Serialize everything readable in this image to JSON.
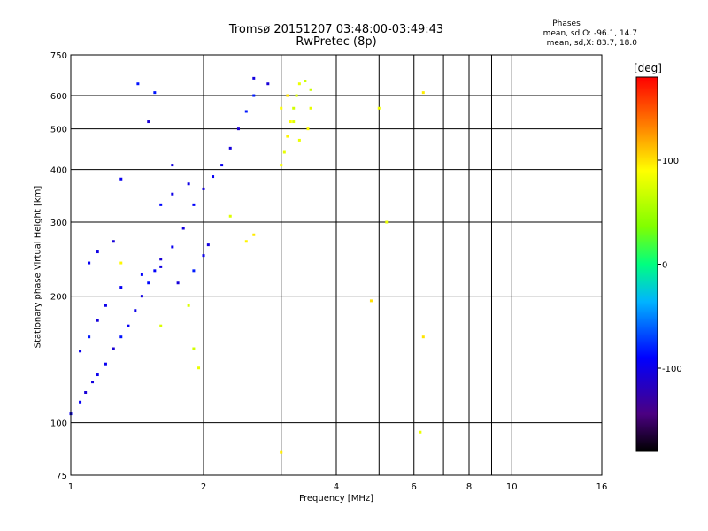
{
  "chart_data": {
    "type": "scatter",
    "title": "Tromsø 20151207 03:48:00-03:49:43",
    "subtitle": "RwPretec (8p)",
    "xlabel": "Frequency [MHz]",
    "ylabel": "Stationary phase Virtual Height [km]",
    "x_scale": "log",
    "y_scale": "log",
    "xlim": [
      1,
      16
    ],
    "ylim": [
      75,
      750
    ],
    "x_ticks": [
      1,
      2,
      4,
      6,
      8,
      10,
      16
    ],
    "x_tick_labels": [
      "1",
      "2",
      "4",
      "6",
      "8",
      "10",
      "16"
    ],
    "x_grid": [
      1,
      2,
      3,
      4,
      5,
      6,
      7,
      8,
      9,
      10,
      16
    ],
    "y_ticks": [
      75,
      100,
      200,
      300,
      400,
      500,
      600,
      750
    ],
    "y_tick_labels": [
      "75",
      "100",
      "200",
      "300",
      "400",
      "500",
      "600",
      "750"
    ],
    "grid": true,
    "colorbar": {
      "title": "[deg]",
      "range": [
        -180,
        180
      ],
      "ticks": [
        100,
        0,
        -100
      ],
      "tick_labels": [
        "100",
        "0",
        "-100"
      ]
    },
    "legend_title": "Phases",
    "stats": [
      "mean, sd,O: -96.1, 14.7",
      "mean, sd,X:  83.7, 18.0"
    ],
    "series": [
      {
        "name": "O",
        "phase_mean": -96.1,
        "phase_sd": 14.7,
        "points": [
          [
            1.0,
            105
          ],
          [
            1.05,
            112
          ],
          [
            1.08,
            118
          ],
          [
            1.12,
            125
          ],
          [
            1.15,
            130
          ],
          [
            1.2,
            138
          ],
          [
            1.25,
            150
          ],
          [
            1.3,
            160
          ],
          [
            1.35,
            170
          ],
          [
            1.4,
            185
          ],
          [
            1.45,
            200
          ],
          [
            1.5,
            215
          ],
          [
            1.55,
            230
          ],
          [
            1.6,
            245
          ],
          [
            1.7,
            262
          ],
          [
            1.8,
            290
          ],
          [
            1.9,
            330
          ],
          [
            2.0,
            360
          ],
          [
            2.1,
            385
          ],
          [
            2.2,
            410
          ],
          [
            2.3,
            450
          ],
          [
            2.4,
            500
          ],
          [
            2.5,
            550
          ],
          [
            2.6,
            600
          ],
          [
            2.8,
            640
          ],
          [
            1.05,
            148
          ],
          [
            1.1,
            160
          ],
          [
            1.15,
            175
          ],
          [
            1.2,
            190
          ],
          [
            1.3,
            210
          ],
          [
            1.45,
            225
          ],
          [
            1.6,
            235
          ],
          [
            1.75,
            215
          ],
          [
            1.9,
            230
          ],
          [
            2.0,
            250
          ],
          [
            2.05,
            265
          ],
          [
            1.1,
            240
          ],
          [
            1.15,
            255
          ],
          [
            1.25,
            270
          ],
          [
            1.6,
            330
          ],
          [
            1.7,
            350
          ],
          [
            1.85,
            370
          ],
          [
            1.5,
            520
          ],
          [
            1.55,
            610
          ],
          [
            2.6,
            660
          ],
          [
            1.42,
            640
          ],
          [
            1.3,
            380
          ],
          [
            1.7,
            410
          ]
        ]
      },
      {
        "name": "X",
        "phase_mean": 83.7,
        "phase_sd": 18.0,
        "points": [
          [
            3.0,
            410
          ],
          [
            3.05,
            440
          ],
          [
            3.1,
            480
          ],
          [
            3.15,
            520
          ],
          [
            3.2,
            560
          ],
          [
            3.25,
            600
          ],
          [
            3.3,
            640
          ],
          [
            3.4,
            650
          ],
          [
            3.5,
            620
          ],
          [
            3.5,
            560
          ],
          [
            3.45,
            500
          ],
          [
            3.0,
            560
          ],
          [
            3.1,
            600
          ],
          [
            3.2,
            520
          ],
          [
            3.3,
            470
          ],
          [
            5.0,
            560
          ],
          [
            5.2,
            300
          ],
          [
            6.3,
            610
          ],
          [
            6.2,
            95
          ],
          [
            1.95,
            135
          ],
          [
            1.85,
            190
          ],
          [
            1.6,
            170
          ],
          [
            1.3,
            240
          ],
          [
            1.9,
            150
          ],
          [
            2.3,
            310
          ],
          [
            2.5,
            270
          ],
          [
            3.0,
            85
          ],
          [
            4.8,
            195
          ],
          [
            6.3,
            160
          ],
          [
            2.6,
            280
          ]
        ]
      }
    ]
  }
}
